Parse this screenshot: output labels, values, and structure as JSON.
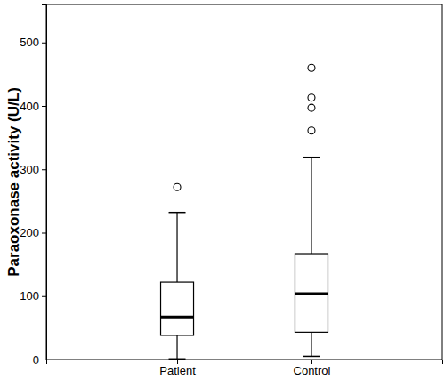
{
  "chart_data": {
    "type": "box",
    "y_label": "Paraoxonase activity (U/L)",
    "categories": [
      "Patient",
      "Control"
    ],
    "boxes": [
      {
        "min": 1,
        "q1": 38,
        "median": 67,
        "q3": 122,
        "max": 232,
        "outliers": [
          272
        ]
      },
      {
        "min": 5,
        "q1": 43,
        "median": 104,
        "q3": 167,
        "max": 319,
        "outliers": [
          361,
          397,
          413,
          460
        ]
      }
    ],
    "color": "#ffffff",
    "marker": "circle",
    "grid": false,
    "ylim": [
      0,
      560
    ],
    "yticks": [
      0,
      100,
      200,
      300,
      400,
      500
    ]
  }
}
